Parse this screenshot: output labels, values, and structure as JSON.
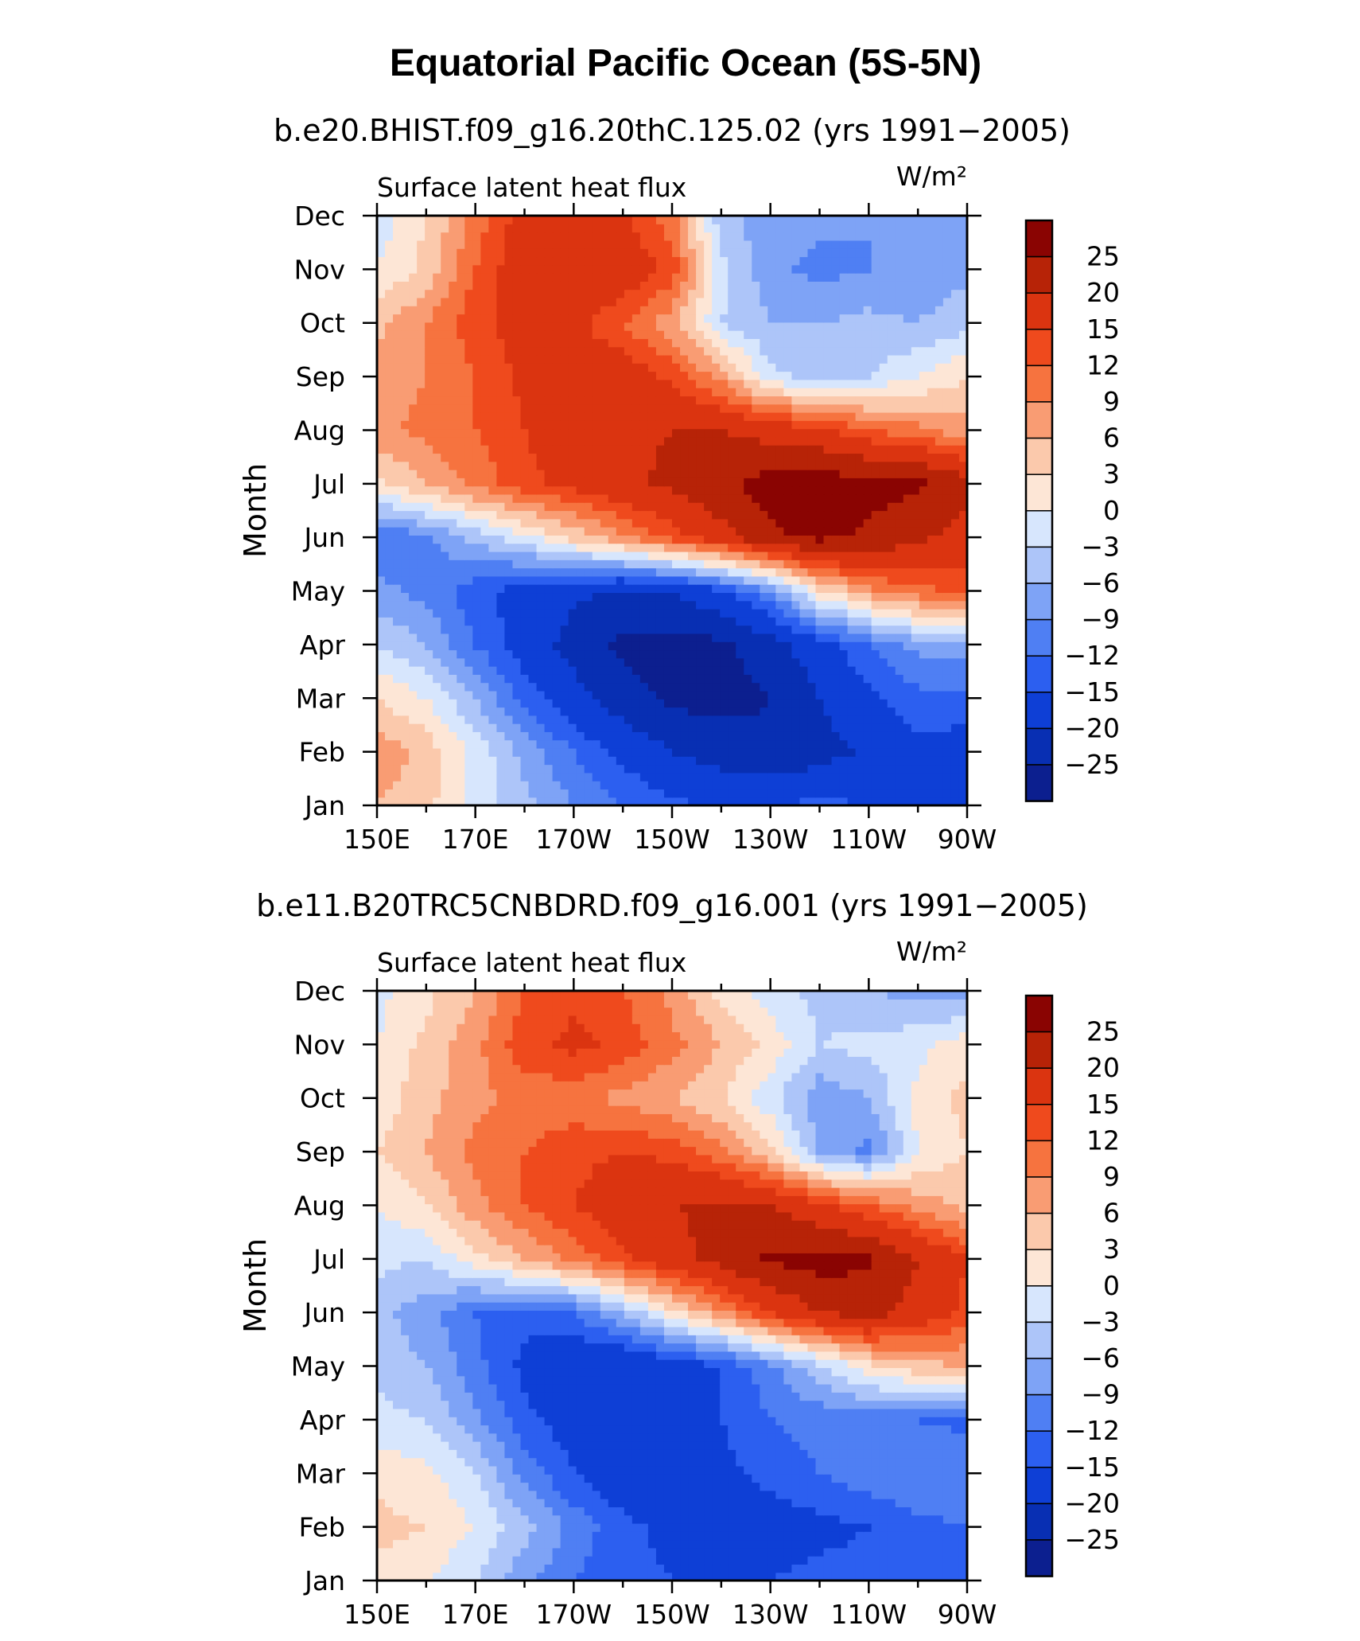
{
  "figure": {
    "title": "Equatorial Pacific Ocean (5S-5N)"
  },
  "palette": [
    "#0c1f8f",
    "#082fb3",
    "#0e3fd6",
    "#2c5ff0",
    "#4f7ff3",
    "#7ea3f6",
    "#adc5f9",
    "#d7e6fd",
    "#fde6d6",
    "#fbc9ac",
    "#f99c73",
    "#f6733f",
    "#ef4a1d",
    "#db3410",
    "#b72307",
    "#8a0402"
  ],
  "chart_data": [
    {
      "type": "heatmap",
      "subtitle": "b.e20.BHIST.f09_g16.20thC.125.02 (yrs 1991−2005)",
      "variable_label": "Surface latent heat flux",
      "units_label": "W/m²",
      "ylabel": "Month",
      "xlabel": "",
      "x_ticks": [
        "150E",
        "170E",
        "170W",
        "150W",
        "130W",
        "110W",
        "90W"
      ],
      "y_ticks": [
        "Jan",
        "Feb",
        "Mar",
        "Apr",
        "May",
        "Jun",
        "Jul",
        "Aug",
        "Sep",
        "Oct",
        "Nov",
        "Dec"
      ],
      "colorbar_labels": [
        "25",
        "20",
        "15",
        "12",
        "9",
        "6",
        "3",
        "0",
        "−3",
        "−6",
        "−9",
        "−12",
        "−15",
        "−20",
        "−25"
      ],
      "colorbar_levels": [
        -25,
        -20,
        -15,
        -12,
        -9,
        -6,
        -3,
        0,
        3,
        6,
        9,
        12,
        15,
        20,
        25
      ],
      "x_lon_east": [
        150,
        160,
        170,
        180,
        190,
        200,
        210,
        220,
        230,
        240,
        250,
        260,
        270
      ],
      "z": [
        [
          6,
          4,
          -1,
          -5,
          -9,
          -12,
          -14,
          -16,
          -15,
          -14,
          -15,
          -15,
          -16
        ],
        [
          8,
          5,
          -1,
          -7,
          -12,
          -16,
          -20,
          -22,
          -24,
          -22,
          -19,
          -16,
          -17
        ],
        [
          3,
          0,
          -6,
          -13,
          -18,
          -23,
          -26,
          -27,
          -25,
          -20,
          -16,
          -13,
          -13
        ],
        [
          -3,
          -6,
          -12,
          -17,
          -22,
          -26,
          -27,
          -26,
          -22,
          -17,
          -12,
          -8,
          -8
        ],
        [
          -8,
          -10,
          -14,
          -17,
          -19,
          -21,
          -20,
          -16,
          -9,
          2,
          8,
          11,
          13
        ],
        [
          -12,
          -10,
          -5,
          -1,
          4,
          8,
          13,
          18,
          24,
          26,
          24,
          21,
          18
        ],
        [
          2,
          6,
          10,
          14,
          16,
          19,
          21,
          24,
          27,
          28,
          27,
          26,
          22
        ],
        [
          8,
          10,
          12,
          15,
          18,
          19,
          20,
          20,
          18,
          16,
          12,
          10,
          7
        ],
        [
          7,
          9,
          12,
          16,
          18,
          18,
          14,
          8,
          -2,
          -4,
          -3,
          0,
          3
        ],
        [
          5,
          9,
          14,
          17,
          16,
          12,
          7,
          -3,
          -6,
          -6,
          -5,
          -6,
          -4
        ],
        [
          0,
          4,
          12,
          18,
          20,
          18,
          14,
          -2,
          -8,
          -10,
          -9,
          -8,
          -7
        ],
        [
          -2,
          3,
          10,
          17,
          19,
          16,
          10,
          -5,
          -8,
          -8,
          -9,
          -8,
          -8
        ]
      ]
    },
    {
      "type": "heatmap",
      "subtitle": "b.e11.B20TRC5CNBDRD.f09_g16.001 (yrs 1991−2005)",
      "variable_label": "Surface latent heat flux",
      "units_label": "W/m²",
      "ylabel": "Month",
      "xlabel": "",
      "x_ticks": [
        "150E",
        "170E",
        "170W",
        "150W",
        "130W",
        "110W",
        "90W"
      ],
      "y_ticks": [
        "Jan",
        "Feb",
        "Mar",
        "Apr",
        "May",
        "Jun",
        "Jul",
        "Aug",
        "Sep",
        "Oct",
        "Nov",
        "Dec"
      ],
      "colorbar_labels": [
        "25",
        "20",
        "15",
        "12",
        "9",
        "6",
        "3",
        "0",
        "−3",
        "−6",
        "−9",
        "−12",
        "−15",
        "−20",
        "−25"
      ],
      "colorbar_levels": [
        -25,
        -20,
        -15,
        -12,
        -9,
        -6,
        -3,
        0,
        3,
        6,
        9,
        12,
        15,
        20,
        25
      ],
      "x_lon_east": [
        150,
        160,
        170,
        180,
        190,
        200,
        210,
        220,
        230,
        240,
        250,
        260,
        270
      ],
      "z": [
        [
          2,
          0,
          -3,
          -8,
          -12,
          -14,
          -15,
          -16,
          -15,
          -14,
          -14,
          -13,
          -14
        ],
        [
          4,
          3,
          0,
          -5,
          -10,
          -14,
          -16,
          -18,
          -17,
          -16,
          -15,
          -13,
          -12
        ],
        [
          2,
          1,
          -3,
          -10,
          -15,
          -18,
          -18,
          -16,
          -14,
          -12,
          -10,
          -9,
          -9
        ],
        [
          -2,
          -3,
          -8,
          -14,
          -17,
          -18,
          -17,
          -15,
          -12,
          -11,
          -11,
          -12,
          -13
        ],
        [
          -4,
          -6,
          -11,
          -16,
          -19,
          -20,
          -18,
          -15,
          -10,
          -4,
          2,
          5,
          6
        ],
        [
          -5,
          -8,
          -12,
          -14,
          -12,
          -6,
          2,
          8,
          15,
          20,
          22,
          18,
          14
        ],
        [
          -2,
          -3,
          2,
          6,
          10,
          14,
          18,
          22,
          26,
          27,
          26,
          20,
          15
        ],
        [
          0,
          3,
          8,
          12,
          15,
          18,
          20,
          21,
          20,
          16,
          12,
          8,
          5
        ],
        [
          3,
          6,
          10,
          12,
          14,
          15,
          14,
          10,
          4,
          -6,
          -10,
          0,
          3
        ],
        [
          1,
          5,
          8,
          10,
          10,
          8,
          6,
          3,
          -2,
          -8,
          -6,
          1,
          4
        ],
        [
          0,
          4,
          8,
          14,
          16,
          14,
          10,
          6,
          2,
          -3,
          -2,
          -1,
          2
        ],
        [
          -1,
          2,
          6,
          12,
          14,
          12,
          8,
          2,
          -2,
          -4,
          -6,
          -7,
          -8
        ]
      ]
    }
  ]
}
